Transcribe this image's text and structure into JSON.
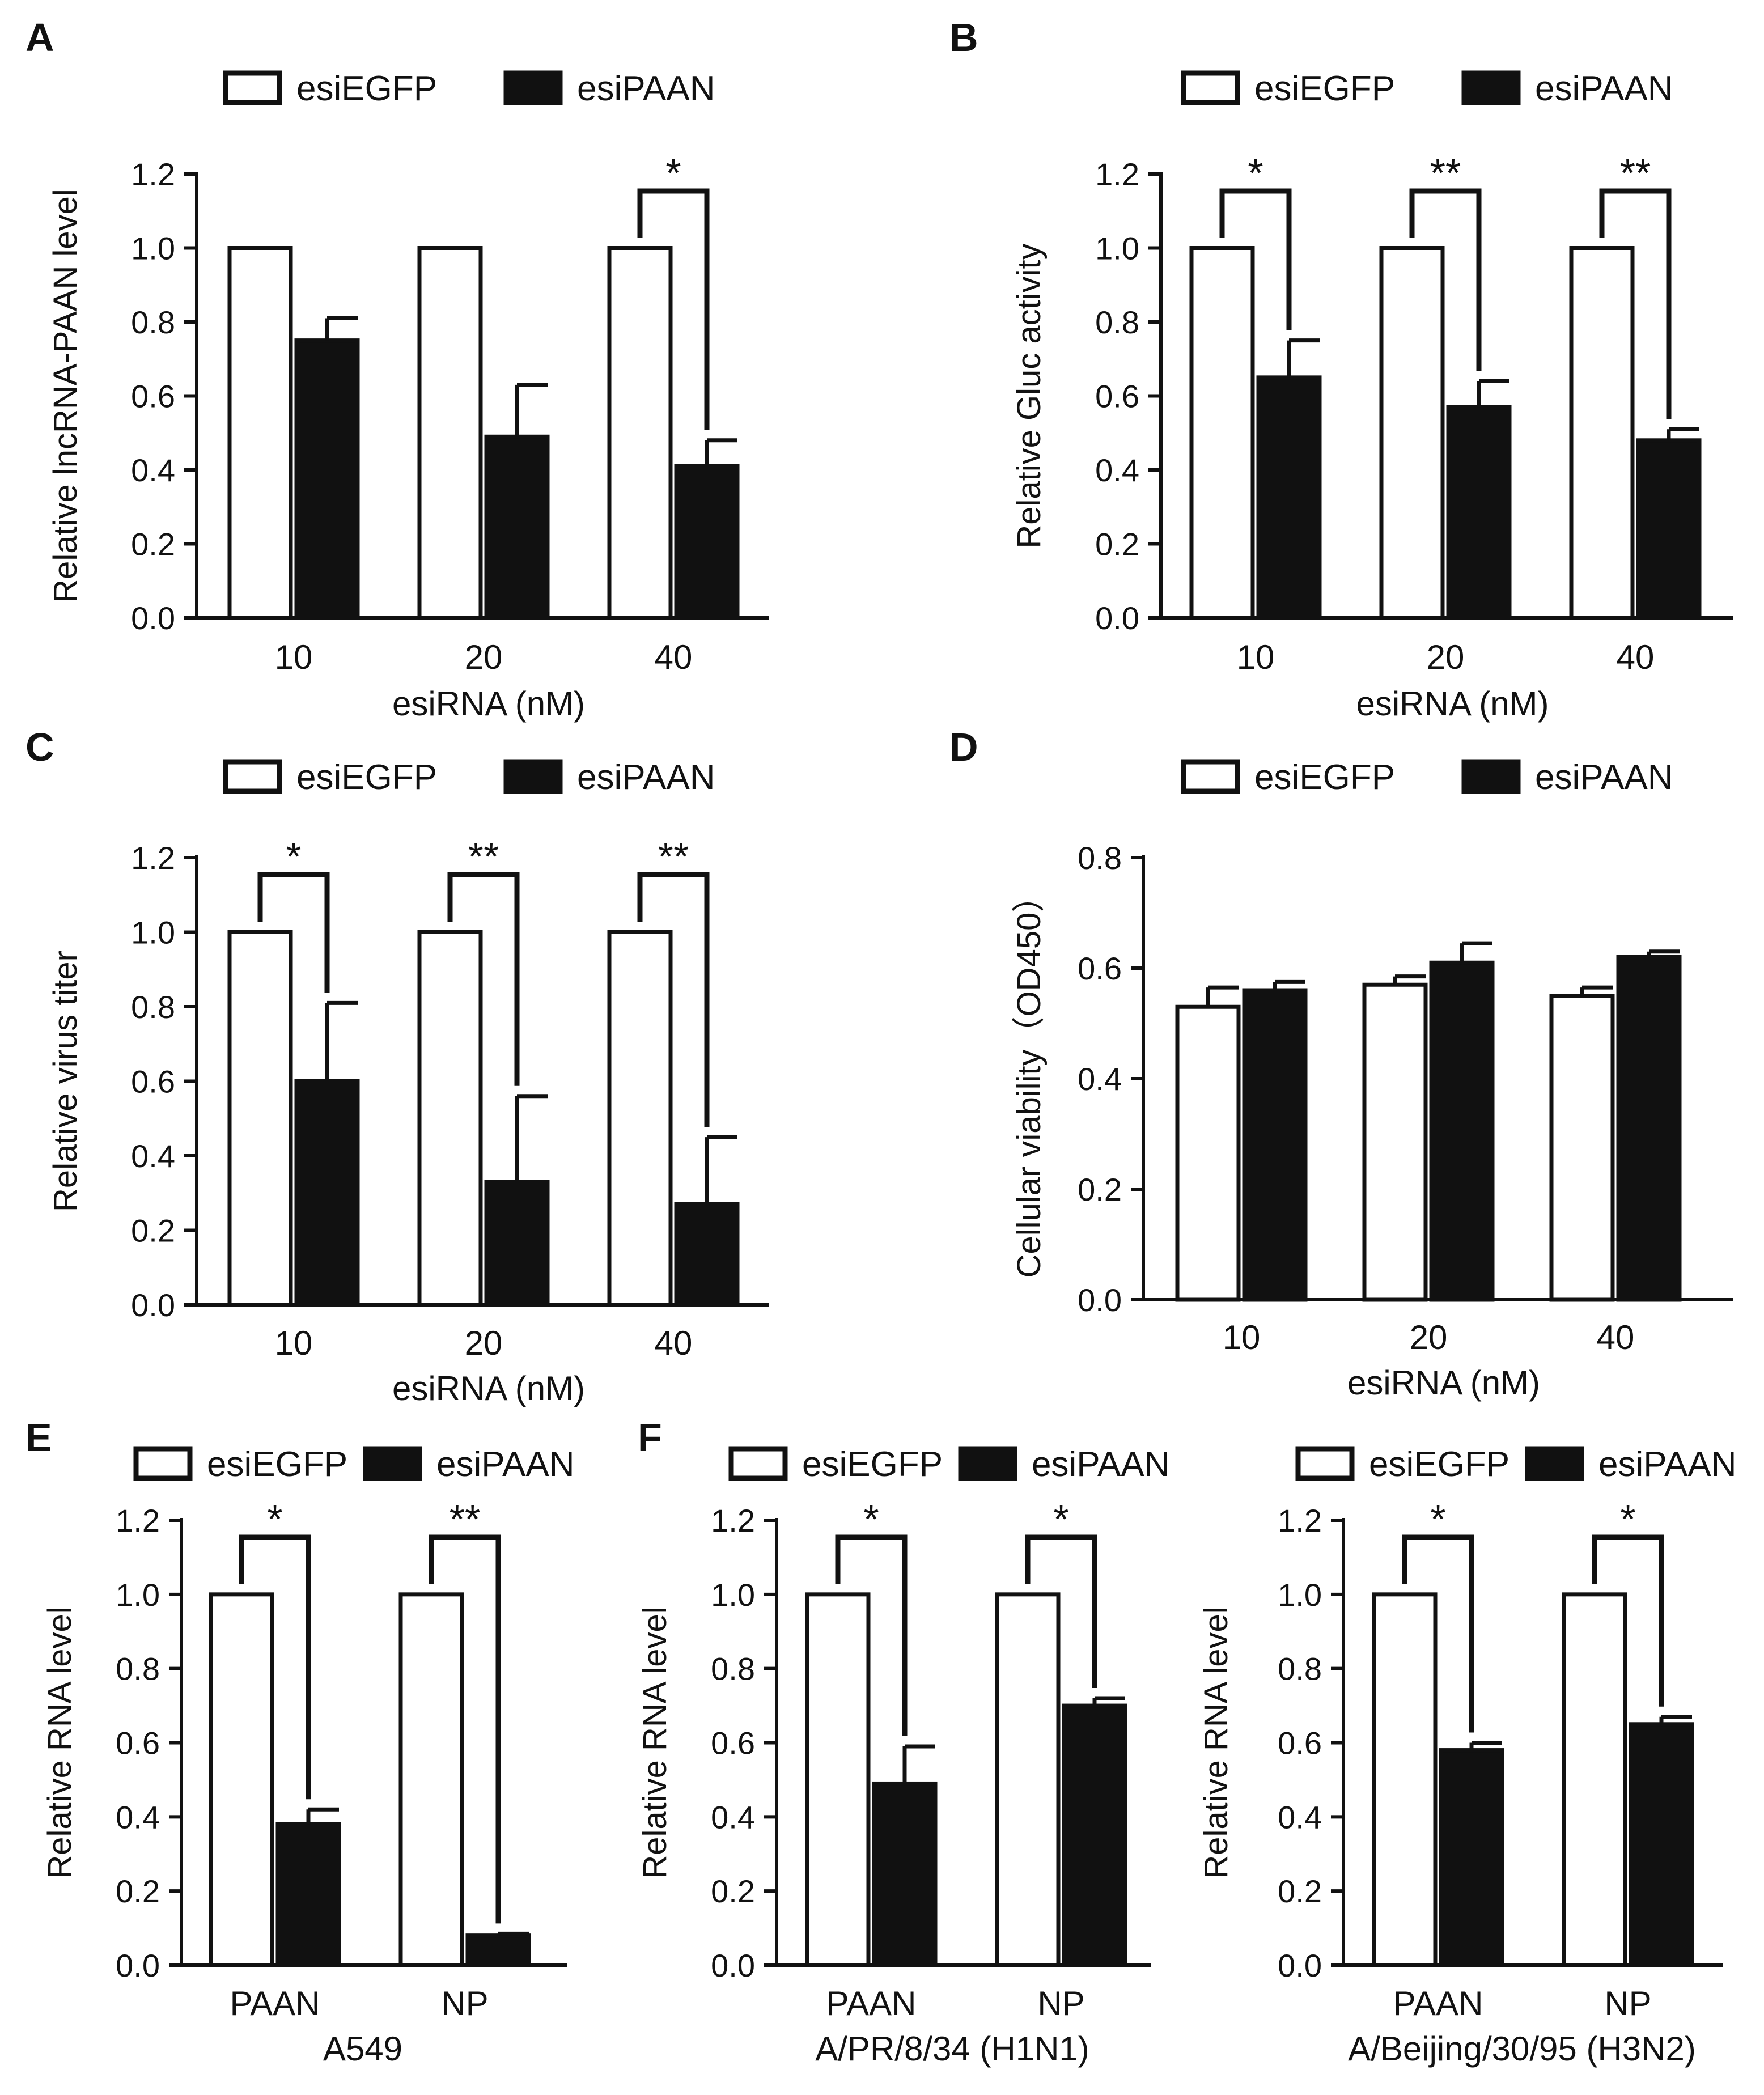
{
  "colors": {
    "ink": "#111111",
    "open_bar": "#ffffff",
    "filled_bar": "#111111"
  },
  "chart_data": [
    {
      "panel": "A",
      "type": "bar",
      "legend": [
        "esiEGFP",
        "esiPAAN"
      ],
      "categories": [
        "10",
        "20",
        "40"
      ],
      "series": [
        {
          "name": "esiEGFP",
          "values": [
            1.0,
            1.0,
            1.0
          ],
          "errors": [
            0,
            0,
            0
          ]
        },
        {
          "name": "esiPAAN",
          "values": [
            0.75,
            0.49,
            0.41
          ],
          "errors": [
            0.06,
            0.14,
            0.07
          ]
        }
      ],
      "significance": [
        "",
        "",
        "*"
      ],
      "ylabel": "Relative lncRNA-PAAN level",
      "xlabel": "esiRNA (nM)",
      "sublabel": "",
      "ylim": [
        0,
        1.2
      ],
      "yticks": [
        "0.0",
        "0.2",
        "0.4",
        "0.6",
        "0.8",
        "1.0",
        "1.2"
      ]
    },
    {
      "panel": "B",
      "type": "bar",
      "legend": [
        "esiEGFP",
        "esiPAAN"
      ],
      "categories": [
        "10",
        "20",
        "40"
      ],
      "series": [
        {
          "name": "esiEGFP",
          "values": [
            1.0,
            1.0,
            1.0
          ],
          "errors": [
            0,
            0,
            0
          ]
        },
        {
          "name": "esiPAAN",
          "values": [
            0.65,
            0.57,
            0.48
          ],
          "errors": [
            0.1,
            0.07,
            0.03
          ]
        }
      ],
      "significance": [
        "*",
        "**",
        "**"
      ],
      "ylabel": "Relative Gluc activity",
      "xlabel": "esiRNA (nM)",
      "sublabel": "",
      "ylim": [
        0,
        1.2
      ],
      "yticks": [
        "0.0",
        "0.2",
        "0.4",
        "0.6",
        "0.8",
        "1.0",
        "1.2"
      ]
    },
    {
      "panel": "C",
      "type": "bar",
      "legend": [
        "esiEGFP",
        "esiPAAN"
      ],
      "categories": [
        "10",
        "20",
        "40"
      ],
      "series": [
        {
          "name": "esiEGFP",
          "values": [
            1.0,
            1.0,
            1.0
          ],
          "errors": [
            0,
            0,
            0
          ]
        },
        {
          "name": "esiPAAN",
          "values": [
            0.6,
            0.33,
            0.27
          ],
          "errors": [
            0.21,
            0.23,
            0.18
          ]
        }
      ],
      "significance": [
        "*",
        "**",
        "**"
      ],
      "ylabel": "Relative virus titer",
      "xlabel": "esiRNA (nM)",
      "sublabel": "",
      "ylim": [
        0,
        1.2
      ],
      "yticks": [
        "0.0",
        "0.2",
        "0.4",
        "0.6",
        "0.8",
        "1.0",
        "1.2"
      ]
    },
    {
      "panel": "D",
      "type": "bar",
      "legend": [
        "esiEGFP",
        "esiPAAN"
      ],
      "categories": [
        "10",
        "20",
        "40"
      ],
      "series": [
        {
          "name": "esiEGFP",
          "values": [
            0.53,
            0.57,
            0.55
          ],
          "errors": [
            0.035,
            0.015,
            0.015
          ]
        },
        {
          "name": "esiPAAN",
          "values": [
            0.56,
            0.61,
            0.62
          ],
          "errors": [
            0.015,
            0.035,
            0.01
          ]
        }
      ],
      "significance": [
        "",
        "",
        ""
      ],
      "ylabel": "Cellular viability（OD450）",
      "xlabel": "esiRNA (nM)",
      "sublabel": "",
      "ylim": [
        0,
        0.8
      ],
      "yticks": [
        "0.0",
        "0.2",
        "0.4",
        "0.6",
        "0.8"
      ]
    },
    {
      "panel": "E",
      "type": "bar",
      "legend": [
        "esiEGFP",
        "esiPAAN"
      ],
      "categories": [
        "PAAN",
        "NP"
      ],
      "series": [
        {
          "name": "esiEGFP",
          "values": [
            1.0,
            1.0
          ],
          "errors": [
            0,
            0
          ]
        },
        {
          "name": "esiPAAN",
          "values": [
            0.38,
            0.08
          ],
          "errors": [
            0.04,
            0.005
          ]
        }
      ],
      "significance": [
        "*",
        "**"
      ],
      "ylabel": "Relative  RNA level",
      "xlabel": "",
      "sublabel": "A549",
      "ylim": [
        0,
        1.2
      ],
      "yticks": [
        "0.0",
        "0.2",
        "0.4",
        "0.6",
        "0.8",
        "1.0",
        "1.2"
      ]
    },
    {
      "panel": "F",
      "type": "bar",
      "legend": [
        "esiEGFP",
        "esiPAAN"
      ],
      "categories": [
        "PAAN",
        "NP"
      ],
      "series": [
        {
          "name": "esiEGFP",
          "values": [
            1.0,
            1.0
          ],
          "errors": [
            0,
            0
          ]
        },
        {
          "name": "esiPAAN",
          "values": [
            0.49,
            0.7
          ],
          "errors": [
            0.1,
            0.02
          ]
        }
      ],
      "significance": [
        "*",
        "*"
      ],
      "ylabel": "Relative  RNA level",
      "xlabel": "",
      "sublabel": "A/PR/8/34 (H1N1)",
      "ylim": [
        0,
        1.2
      ],
      "yticks": [
        "0.0",
        "0.2",
        "0.4",
        "0.6",
        "0.8",
        "1.0",
        "1.2"
      ]
    },
    {
      "panel": "",
      "type": "bar",
      "legend": [
        "esiEGFP",
        "esiPAAN"
      ],
      "categories": [
        "PAAN",
        "NP"
      ],
      "series": [
        {
          "name": "esiEGFP",
          "values": [
            1.0,
            1.0
          ],
          "errors": [
            0,
            0
          ]
        },
        {
          "name": "esiPAAN",
          "values": [
            0.58,
            0.65
          ],
          "errors": [
            0.02,
            0.02
          ]
        }
      ],
      "significance": [
        "*",
        "*"
      ],
      "ylabel": "Relative  RNA level",
      "xlabel": "",
      "sublabel": "A/Beijing/30/95 (H3N2)",
      "ylim": [
        0,
        1.2
      ],
      "yticks": [
        "0.0",
        "0.2",
        "0.4",
        "0.6",
        "0.8",
        "1.0",
        "1.2"
      ]
    }
  ]
}
